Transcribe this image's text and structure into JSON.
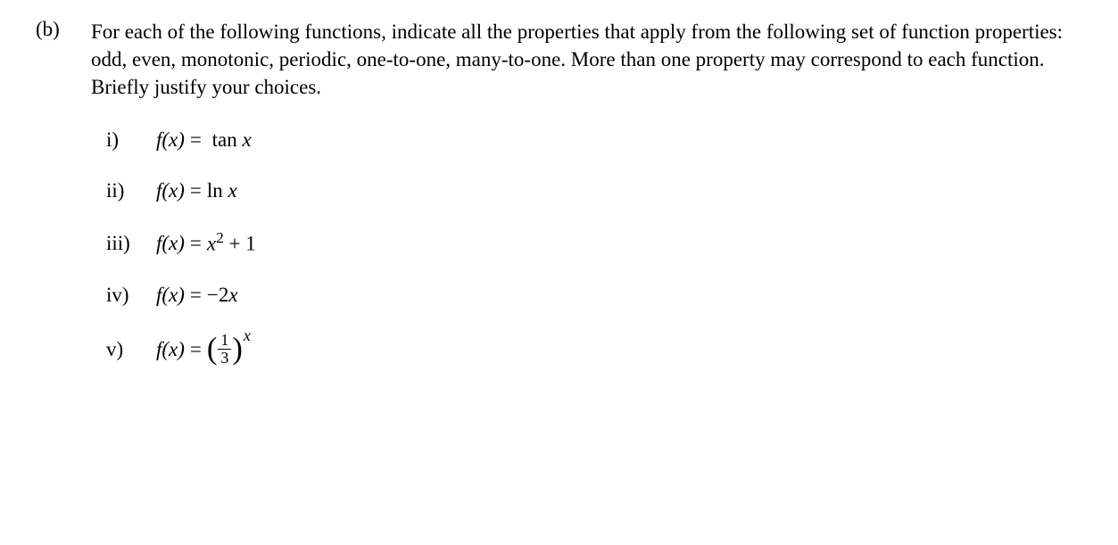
{
  "question": {
    "label": "(b)",
    "text": "For each of the following functions, indicate all the properties that apply from the following set of function properties: odd, even, monotonic, periodic, one-to-one, many-to-one. More than one property may correspond to each function. Briefly justify your choices."
  },
  "subparts": [
    {
      "label": "i)",
      "lhs": "f(x)",
      "eq": "=",
      "rhs_type": "tanx",
      "rhs_prefix": "tan",
      "rhs_var": "x"
    },
    {
      "label": "ii)",
      "lhs": "f(x)",
      "eq": "=",
      "rhs_type": "lnx",
      "rhs_prefix": "ln",
      "rhs_var": "x"
    },
    {
      "label": "iii)",
      "lhs": "f(x)",
      "eq": "=",
      "rhs_type": "poly",
      "rhs_var": "x",
      "rhs_exp": "2",
      "rhs_op": " + ",
      "rhs_const": "1"
    },
    {
      "label": "iv)",
      "lhs": "f(x)",
      "eq": "=",
      "rhs_type": "linear",
      "rhs_coef": "−2",
      "rhs_var": "x"
    },
    {
      "label": "v)",
      "lhs": "f(x)",
      "eq": "=",
      "rhs_type": "expfrac",
      "frac_num": "1",
      "frac_den": "3",
      "exp_var": "x"
    }
  ],
  "style": {
    "background_color": "#ffffff",
    "text_color": "#000000",
    "font_family": "Times New Roman",
    "font_size_pt": 17
  }
}
